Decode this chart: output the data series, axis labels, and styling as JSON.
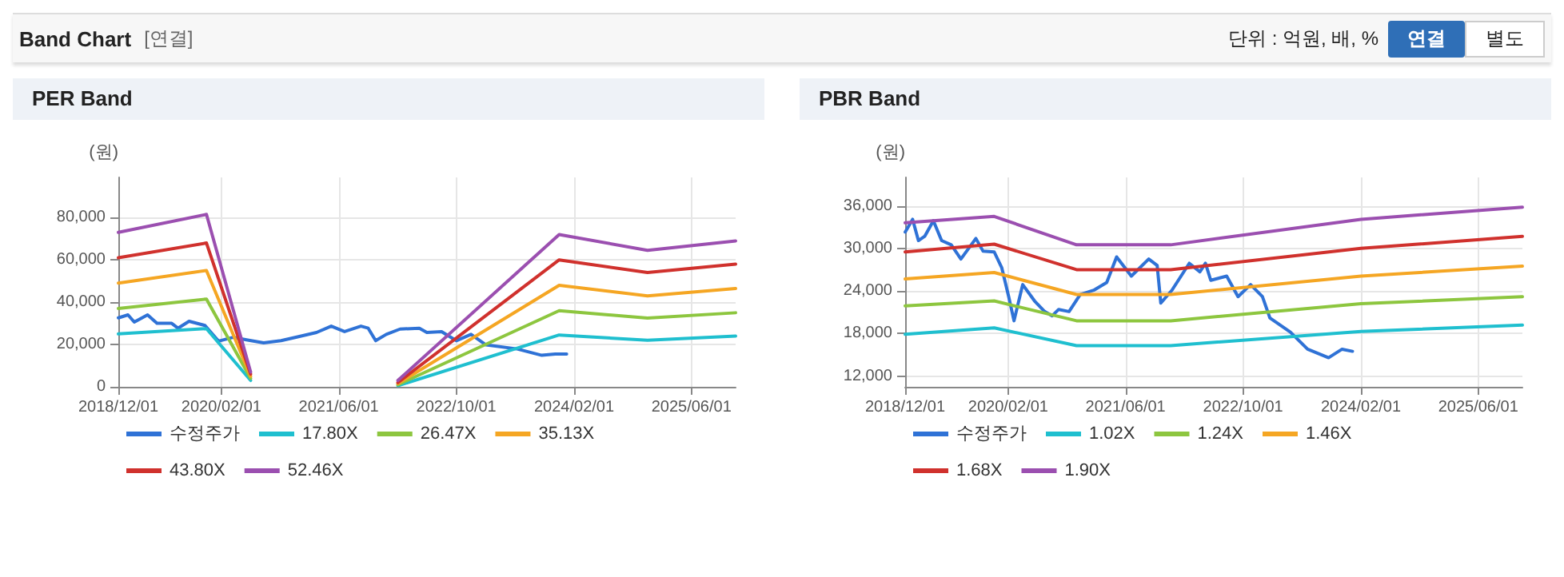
{
  "chart_data": [
    {
      "type": "line",
      "title": "PER Band",
      "ylabel": "(원)",
      "annotations": [
        "Band Chart",
        "[연결]",
        "단위 : 억원, 배, %",
        "연결",
        "별도"
      ],
      "legend": "bottom",
      "grid": true,
      "marker": "none",
      "line_style": "solid",
      "xlim": [
        "2018-12-01",
        "2025-12-01"
      ],
      "xticks": [
        {
          "value": "2018-12-01",
          "label": "2018/12/01"
        },
        {
          "value": "2020-02-01",
          "label": "2020/02/01"
        },
        {
          "value": "2021-06-01",
          "label": "2021/06/01"
        },
        {
          "value": "2022-10-01",
          "label": "2022/10/01"
        },
        {
          "value": "2024-02-01",
          "label": "2024/02/01"
        },
        {
          "value": "2025-06-01",
          "label": "2025/06/01"
        }
      ],
      "ylim": [
        0,
        99000
      ],
      "yticks": [
        {
          "value": 0,
          "label": "0"
        },
        {
          "value": 20000,
          "label": "20,000"
        },
        {
          "value": 40000,
          "label": "40,000"
        },
        {
          "value": 60000,
          "label": "60,000"
        },
        {
          "value": 80000,
          "label": "80,000"
        }
      ],
      "series": [
        {
          "name": "수정주가",
          "color": "#2f72d6",
          "x": [
            "2018-12-01",
            "2019-01-10",
            "2019-02-05",
            "2019-04-01",
            "2019-05-10",
            "2019-07-10",
            "2019-08-05",
            "2019-09-20",
            "2019-11-25",
            "2020-01-20",
            "2020-03-20",
            "2020-05-15",
            "2020-07-25",
            "2020-10-05",
            "2020-12-20",
            "2021-03-01",
            "2021-05-01",
            "2021-06-25",
            "2021-09-01",
            "2021-10-01",
            "2021-11-01",
            "2021-12-15",
            "2022-02-10",
            "2022-05-01",
            "2022-06-01",
            "2022-08-01",
            "2022-10-01",
            "2022-12-01",
            "2023-02-01",
            "2023-06-10",
            "2023-09-20",
            "2023-11-15",
            "2024-01-01"
          ],
          "values": [
            32600,
            34000,
            30600,
            34000,
            30000,
            30000,
            27700,
            31000,
            29000,
            21600,
            23400,
            22200,
            20800,
            21800,
            23800,
            25700,
            28700,
            26100,
            28700,
            27700,
            21800,
            24800,
            27300,
            27700,
            25700,
            26100,
            21800,
            24800,
            19800,
            17900,
            14900,
            15500,
            15500
          ]
        },
        {
          "name": "17.80X",
          "color": "#1fbfcf",
          "x": [
            "2018-12-01",
            "2019-12-01",
            "2020-06-01",
            "2021-12-01",
            "2022-02-01",
            "2023-12-01",
            "2024-12-01",
            "2025-12-01"
          ],
          "values": [
            25000,
            27500,
            3000,
            null,
            500,
            24500,
            22000,
            24000
          ]
        },
        {
          "name": "26.47X",
          "color": "#8dc63f",
          "x": [
            "2018-12-01",
            "2019-12-01",
            "2020-06-01",
            "2021-12-01",
            "2022-02-01",
            "2023-12-01",
            "2024-12-01",
            "2025-12-01"
          ],
          "values": [
            37000,
            41500,
            4000,
            null,
            1000,
            36000,
            32500,
            35000
          ]
        },
        {
          "name": "35.13X",
          "color": "#f5a623",
          "x": [
            "2018-12-01",
            "2019-12-01",
            "2020-06-01",
            "2021-12-01",
            "2022-02-01",
            "2023-12-01",
            "2024-12-01",
            "2025-12-01"
          ],
          "values": [
            49000,
            55000,
            5000,
            null,
            1500,
            48000,
            43000,
            46500
          ]
        },
        {
          "name": "43.80X",
          "color": "#d0312d",
          "x": [
            "2018-12-01",
            "2019-12-01",
            "2020-06-01",
            "2021-12-01",
            "2022-02-01",
            "2023-12-01",
            "2024-12-01",
            "2025-12-01"
          ],
          "values": [
            61000,
            68000,
            6000,
            null,
            2000,
            60000,
            54000,
            58000
          ]
        },
        {
          "name": "52.46X",
          "color": "#9b4fb0",
          "x": [
            "2018-12-01",
            "2019-12-01",
            "2020-06-01",
            "2021-12-01",
            "2022-02-01",
            "2023-12-01",
            "2024-12-01",
            "2025-12-01"
          ],
          "values": [
            73000,
            81500,
            7000,
            null,
            3000,
            72000,
            64500,
            69000
          ]
        }
      ]
    },
    {
      "type": "line",
      "title": "PBR Band",
      "ylabel": "(원)",
      "legend": "bottom",
      "grid": true,
      "marker": "none",
      "line_style": "solid",
      "xlim": [
        "2018-12-01",
        "2025-12-01"
      ],
      "xticks": [
        {
          "value": "2018-12-01",
          "label": "2018/12/01"
        },
        {
          "value": "2020-02-01",
          "label": "2020/02/01"
        },
        {
          "value": "2021-06-01",
          "label": "2021/06/01"
        },
        {
          "value": "2022-10-01",
          "label": "2022/10/01"
        },
        {
          "value": "2024-02-01",
          "label": "2024/02/01"
        },
        {
          "value": "2025-06-01",
          "label": "2025/06/01"
        }
      ],
      "ylim": [
        10500,
        40000
      ],
      "yticks": [
        {
          "value": 12000,
          "label": "12,000"
        },
        {
          "value": 18000,
          "label": "18,000"
        },
        {
          "value": 24000,
          "label": "24,000"
        },
        {
          "value": 30000,
          "label": "30,000"
        },
        {
          "value": 36000,
          "label": "36,000"
        }
      ],
      "series": [
        {
          "name": "수정주가",
          "color": "#2f72d6",
          "x": [
            "2018-12-01",
            "2019-01-01",
            "2019-01-25",
            "2019-02-20",
            "2019-03-28",
            "2019-05-01",
            "2019-06-10",
            "2019-07-20",
            "2019-09-20",
            "2019-10-20",
            "2019-12-05",
            "2020-01-05",
            "2020-02-03",
            "2020-02-25",
            "2020-04-01",
            "2020-05-20",
            "2020-07-01",
            "2020-08-01",
            "2020-08-28",
            "2020-10-10",
            "2020-11-25",
            "2021-01-20",
            "2021-03-15",
            "2021-04-25",
            "2021-06-25",
            "2021-09-05",
            "2021-10-10",
            "2021-10-25",
            "2021-12-10",
            "2022-02-20",
            "2022-04-05",
            "2022-04-28",
            "2022-05-20",
            "2022-07-25",
            "2022-09-10",
            "2022-11-01",
            "2022-12-20",
            "2023-01-20",
            "2023-04-15",
            "2023-06-25",
            "2023-09-20",
            "2023-11-15",
            "2023-12-28"
          ],
          "values": [
            32300,
            34100,
            31100,
            31700,
            33900,
            31100,
            30500,
            28500,
            31400,
            29600,
            29500,
            27300,
            23200,
            19800,
            24900,
            22600,
            21100,
            20500,
            21400,
            21100,
            23500,
            24100,
            25200,
            28800,
            26100,
            28500,
            27600,
            22300,
            24100,
            27900,
            26700,
            27900,
            25500,
            26100,
            23200,
            24900,
            23200,
            20200,
            18200,
            15800,
            14600,
            15800,
            15500
          ]
        },
        {
          "name": "1.02X",
          "color": "#1fbfcf",
          "x": [
            "2018-12-01",
            "2019-12-05",
            "2020-11-10",
            "2021-12-05",
            "2024-02-01",
            "2025-12-01"
          ],
          "values": [
            17900,
            18800,
            16300,
            16300,
            18300,
            19200
          ]
        },
        {
          "name": "1.24X",
          "color": "#8dc63f",
          "x": [
            "2018-12-01",
            "2019-12-05",
            "2020-11-10",
            "2021-12-05",
            "2024-02-01",
            "2025-12-01"
          ],
          "values": [
            21900,
            22600,
            19800,
            19800,
            22200,
            23200
          ]
        },
        {
          "name": "1.46X",
          "color": "#f5a623",
          "x": [
            "2018-12-01",
            "2019-12-05",
            "2020-11-10",
            "2021-12-05",
            "2024-02-01",
            "2025-12-01"
          ],
          "values": [
            25700,
            26600,
            23500,
            23500,
            26100,
            27500
          ]
        },
        {
          "name": "1.68X",
          "color": "#d0312d",
          "x": [
            "2018-12-01",
            "2019-12-05",
            "2020-11-10",
            "2021-12-05",
            "2024-02-01",
            "2025-12-01"
          ],
          "values": [
            29500,
            30600,
            27000,
            27000,
            30000,
            31700
          ]
        },
        {
          "name": "1.90X",
          "color": "#9b4fb0",
          "x": [
            "2018-12-01",
            "2019-12-05",
            "2020-11-10",
            "2021-12-05",
            "2024-02-01",
            "2025-12-01"
          ],
          "values": [
            33600,
            34500,
            30500,
            30500,
            34100,
            35800
          ]
        }
      ]
    }
  ]
}
